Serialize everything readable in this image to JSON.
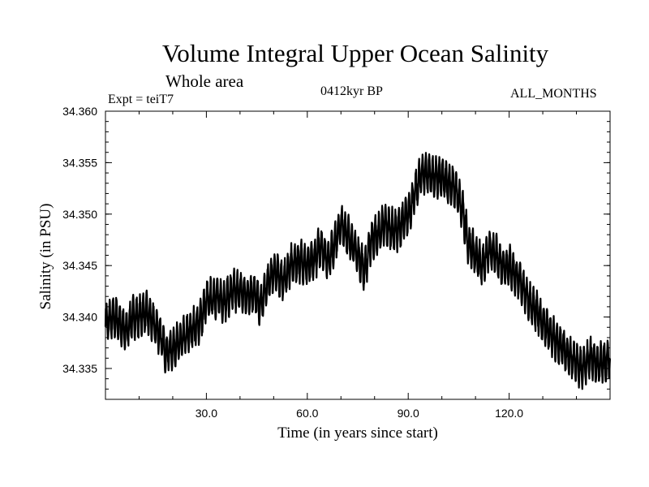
{
  "chart_data": {
    "type": "line",
    "title": "Volume Integral Upper Ocean Salinity",
    "subtitle": "Whole area",
    "expt": "Expt = teiT7",
    "period": "0412kyr BP",
    "months": "ALL_MONTHS",
    "xlabel": "Time (in years since start)",
    "ylabel": "Salinity (in PSU)",
    "xlim": [
      0,
      150
    ],
    "ylim": [
      34.332,
      34.36
    ],
    "xticks": [
      30,
      60,
      90,
      120
    ],
    "xtick_labels": [
      "30.0",
      "60.0",
      "90.0",
      "120.0"
    ],
    "yticks": [
      34.335,
      34.34,
      34.345,
      34.35,
      34.355,
      34.36
    ],
    "ytick_labels": [
      "34.335",
      "34.340",
      "34.345",
      "34.350",
      "34.355",
      "34.360"
    ],
    "annual_cycle_amplitude": 0.0018,
    "series": [
      {
        "name": "Salinity",
        "description": "monthly values with seasonal cycle; base (annual mean) trajectory below",
        "x": [
          0,
          3,
          6,
          8,
          10,
          12,
          14,
          16,
          18,
          20,
          22,
          25,
          28,
          30,
          33,
          35,
          38,
          40,
          42,
          44,
          46,
          48,
          50,
          53,
          55,
          58,
          60,
          62,
          64,
          66,
          68,
          70,
          72,
          75,
          77,
          79,
          81,
          83,
          85,
          87,
          90,
          92,
          94,
          96,
          98,
          100,
          102,
          104,
          106,
          108,
          110,
          112,
          114,
          116,
          118,
          120,
          122,
          124,
          126,
          128,
          130,
          132,
          134,
          136,
          138,
          140,
          142,
          144,
          146,
          148,
          150
        ],
        "y": [
          34.3395,
          34.34,
          34.3385,
          34.34,
          34.34,
          34.3405,
          34.3395,
          34.3385,
          34.3365,
          34.337,
          34.3375,
          34.3385,
          34.3395,
          34.3415,
          34.342,
          34.3415,
          34.3425,
          34.3425,
          34.342,
          34.3425,
          34.341,
          34.343,
          34.3445,
          34.3435,
          34.345,
          34.3455,
          34.345,
          34.3455,
          34.347,
          34.3455,
          34.347,
          34.349,
          34.348,
          34.346,
          34.3445,
          34.3475,
          34.348,
          34.349,
          34.3485,
          34.3485,
          34.35,
          34.352,
          34.354,
          34.354,
          34.3535,
          34.3535,
          34.353,
          34.3525,
          34.3505,
          34.347,
          34.346,
          34.345,
          34.3465,
          34.346,
          34.345,
          34.345,
          34.344,
          34.343,
          34.3415,
          34.3405,
          34.3395,
          34.3385,
          34.3375,
          34.337,
          34.336,
          34.3355,
          34.335,
          34.336,
          34.3355,
          34.3355,
          34.336
        ]
      }
    ]
  }
}
